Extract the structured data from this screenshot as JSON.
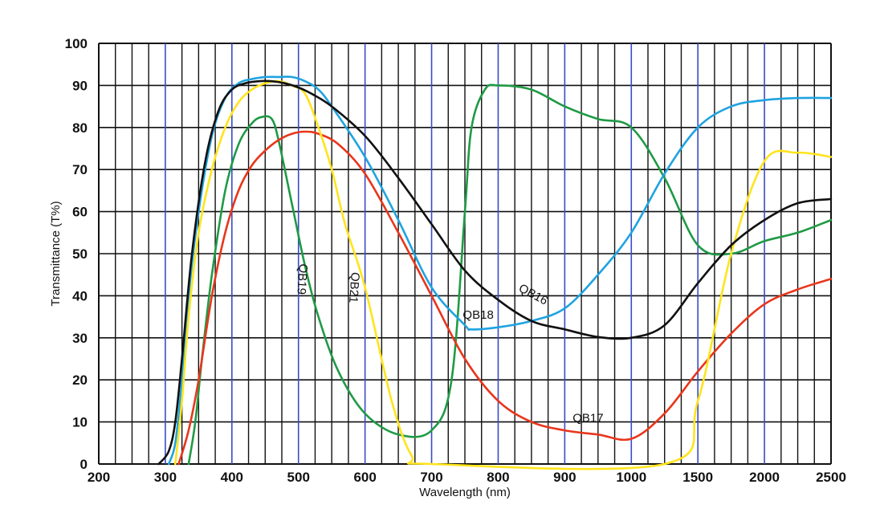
{
  "chart_data": {
    "type": "line",
    "title": "",
    "xlabel": "Wavelength (nm)",
    "ylabel": "Transmittance (T%)",
    "x_scale": "segmented: linear 200-1000 nm (100 nm per major division), compressed 1000-2500 nm (500 nm per major division)",
    "x_ticks": [
      "200",
      "300",
      "400",
      "500",
      "600",
      "700",
      "800",
      "900",
      "1000",
      "1500",
      "2000",
      "2500"
    ],
    "y_ticks": [
      "0",
      "10",
      "20",
      "30",
      "40",
      "50",
      "60",
      "70",
      "80",
      "90",
      "100"
    ],
    "xlim": [
      200,
      2500
    ],
    "ylim": [
      0,
      100
    ],
    "grid": true,
    "legend": "none (curves labelled directly)",
    "series": [
      {
        "name": "QB16",
        "color": "#111111",
        "x": [
          290,
          305,
          315,
          325,
          340,
          360,
          380,
          400,
          420,
          440,
          460,
          480,
          500,
          520,
          550,
          600,
          650,
          700,
          750,
          800,
          850,
          900,
          950,
          1000,
          1250,
          1500,
          1750,
          2000,
          2250,
          2500
        ],
        "y": [
          0,
          3,
          10,
          25,
          50,
          72,
          84,
          89,
          90.5,
          91,
          91,
          90.5,
          89.5,
          88,
          85,
          78,
          68,
          57,
          46,
          39,
          34,
          32,
          30.2,
          30,
          33,
          43,
          52,
          58,
          62,
          63
        ]
      },
      {
        "name": "QB17",
        "color": "#e8361c",
        "x": [
          320,
          335,
          350,
          370,
          390,
          410,
          430,
          450,
          470,
          490,
          510,
          530,
          560,
          600,
          650,
          700,
          750,
          800,
          850,
          900,
          950,
          1000,
          1250,
          1500,
          1750,
          2000,
          2250,
          2500
        ],
        "y": [
          0,
          8,
          20,
          40,
          55,
          65,
          71,
          74.5,
          77,
          78.5,
          79,
          78.5,
          76,
          69,
          55,
          40,
          25,
          15,
          10,
          8,
          7,
          6,
          12,
          22,
          31,
          38,
          41.5,
          44
        ]
      },
      {
        "name": "QB18",
        "color": "#1fa3e0",
        "x": [
          305,
          315,
          325,
          335,
          350,
          370,
          390,
          410,
          430,
          450,
          470,
          490,
          510,
          530,
          550,
          600,
          650,
          700,
          750,
          760,
          800,
          850,
          900,
          950,
          1000,
          1250,
          1500,
          1750,
          2000,
          2250,
          2500
        ],
        "y": [
          0,
          5,
          20,
          40,
          60,
          78,
          87,
          90.5,
          91.5,
          92,
          92,
          92,
          91,
          89,
          85,
          73,
          58,
          42,
          33,
          32,
          32.5,
          34,
          37,
          45,
          55,
          69,
          80,
          85,
          86.5,
          87,
          87
        ]
      },
      {
        "name": "QB19",
        "color": "#1f9a45",
        "x": [
          335,
          345,
          355,
          370,
          390,
          410,
          430,
          445,
          460,
          470,
          490,
          510,
          530,
          560,
          600,
          650,
          700,
          730,
          750,
          760,
          780,
          800,
          850,
          900,
          950,
          1000,
          1250,
          1500,
          1750,
          2000,
          2250,
          2500
        ],
        "y": [
          0,
          10,
          25,
          45,
          65,
          76,
          81,
          82.5,
          82,
          77,
          62,
          47,
          35,
          22,
          12,
          7,
          8,
          20,
          60,
          80,
          89,
          90,
          89,
          85,
          82,
          80,
          68,
          52,
          50,
          53,
          55,
          58
        ]
      },
      {
        "name": "QB21",
        "color": "#ffe41c",
        "x": [
          315,
          325,
          335,
          350,
          370,
          390,
          410,
          430,
          450,
          470,
          490,
          510,
          530,
          550,
          570,
          600,
          640,
          670,
          700,
          1250,
          1500,
          1750,
          2000,
          2250,
          2500
        ],
        "y": [
          0,
          15,
          35,
          55,
          70,
          80,
          86,
          89,
          90.5,
          91,
          90,
          88,
          80,
          70,
          57,
          42,
          15,
          2,
          0,
          0,
          15,
          50,
          72,
          74,
          73
        ]
      }
    ]
  }
}
